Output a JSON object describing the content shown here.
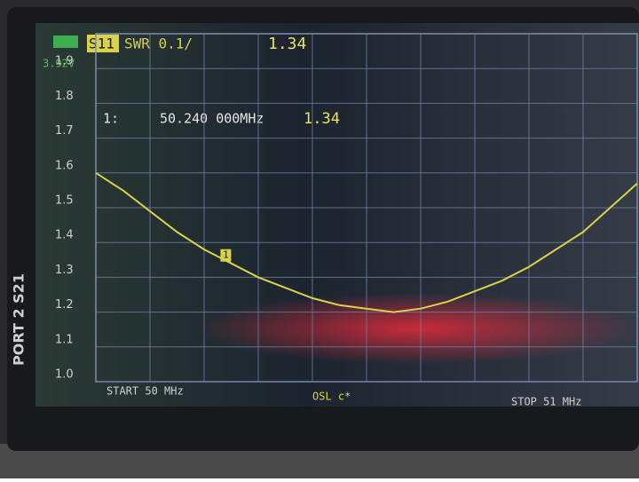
{
  "chart_data": {
    "type": "line",
    "channel": "S11",
    "format": "SWR 0.1/",
    "current_value": "1.34",
    "battery": "3.92V",
    "start_label": "START 50 MHz",
    "stop_label": "STOP 51 MHz",
    "status": "OSL c*",
    "xlim": [
      50,
      51
    ],
    "ylim": [
      1,
      2
    ],
    "yticks": [
      {
        "value": 1,
        "label": "1.0"
      },
      1.1,
      1.2,
      1.3,
      1.4,
      1.5,
      1.6,
      1.7,
      1.8,
      1.9
    ],
    "grid": true,
    "x": [
      50,
      50.05,
      50.1,
      50.15,
      50.2,
      50.25,
      50.3,
      50.35,
      50.4,
      50.45,
      50.5,
      50.55,
      50.6,
      50.65,
      50.7,
      50.75,
      50.8,
      50.85,
      50.9,
      50.95,
      51
    ],
    "series": [
      {
        "color": "#d8d24a",
        "values": [
          1.6,
          1.55,
          1.49,
          1.43,
          1.38,
          1.34,
          1.3,
          1.27,
          1.24,
          1.22,
          1.21,
          1.2,
          1.21,
          1.23,
          1.26,
          1.29,
          1.33,
          1.38,
          1.43,
          1.5,
          1.57
        ]
      }
    ],
    "marker": {
      "label": "1",
      "index_label": "1:",
      "x": 50.24,
      "x_label": "50.240 000MHz",
      "value": 1.34
    }
  }
}
